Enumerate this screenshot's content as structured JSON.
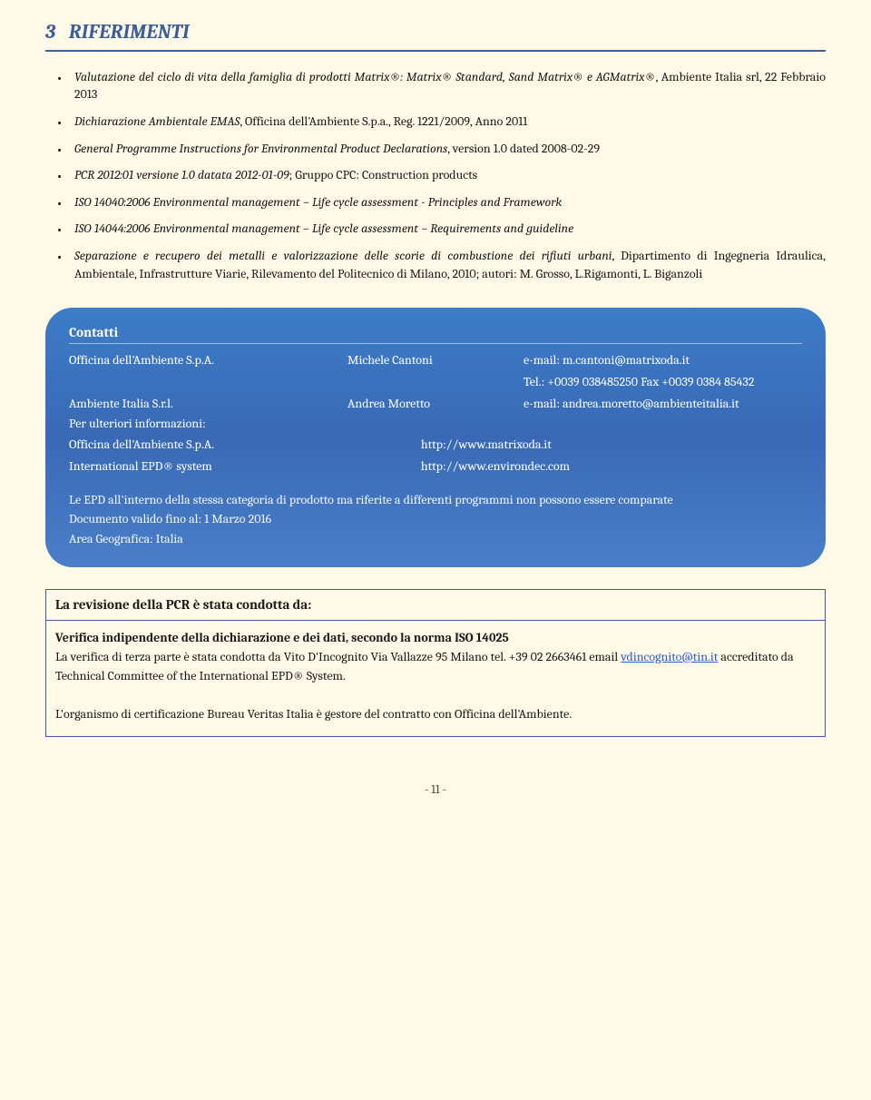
{
  "section": {
    "number": "3",
    "title": "RIFERIMENTI"
  },
  "references": [
    {
      "pre_italic": "Valutazione del ciclo di vita della famiglia di prodotti Matrix®: Matrix® Standard, Sand Matrix® e AGMatrix®",
      "post": ", Ambiente Italia srl, 22 Febbraio 2013"
    },
    {
      "pre_italic": "Dichiarazione Ambientale EMAS",
      "post": ", Officina dell'Ambiente S.p.a., Reg. 1221/2009, Anno 2011"
    },
    {
      "pre_italic": "General Programme Instructions for Environmental Product Declarations",
      "post": ", version 1.0 dated 2008-02-29"
    },
    {
      "pre_italic": "PCR 2012:01 versione 1.0 datata 2012-01-09",
      "post": "; Gruppo CPC: Construction products"
    },
    {
      "pre_italic": "ISO 14040:2006 Environmental management – Life cycle assessment - Principles and Framework",
      "post": ""
    },
    {
      "pre_italic": "ISO 14044:2006 Environmental management – Life cycle assessment – Requirements and guideline",
      "post": ""
    },
    {
      "pre_italic": "Separazione e recupero dei metalli e valorizzazione delle scorie di combustione dei rifiuti urbani",
      "post": ", Dipartimento di Ingegneria Idraulica, Ambientale, Infrastrutture Viarie, Rilevamento del Politecnico di Milano, 2010; autori: M. Grosso, L.Rigamonti, L. Biganzoli"
    }
  ],
  "contacts": {
    "heading": "Contatti",
    "rows": [
      {
        "org": "Officina dell'Ambiente S.p.A.",
        "person": "Michele Cantoni",
        "email_label": "e-mail: m.cantoni@matrixoda.it"
      },
      {
        "org": "",
        "person": "",
        "email_label": "Tel.: +0039 038485250 Fax +0039 0384 85432"
      },
      {
        "org": "Ambiente Italia S.r.l.",
        "person": "Andrea Moretto",
        "email_label": "e-mail: andrea.moretto@ambienteitalia.it"
      }
    ],
    "more_info_label": "Per ulteriori informazioni:",
    "links": [
      {
        "org": "Officina dell'Ambiente S.p.A.",
        "url": "http://www.matrixoda.it"
      },
      {
        "org": "International EPD® system",
        "url": "http://www.environdec.com"
      }
    ],
    "notice_lines": [
      "Le EPD all'interno della stessa categoria di prodotto ma riferite a differenti programmi non possono essere comparate",
      "Documento valido fino al: 1 Marzo 2016",
      "Area Geografica: Italia"
    ]
  },
  "pcr_box": {
    "heading": "La revisione della PCR è stata condotta da:",
    "sub_heading": "Verifica indipendente della dichiarazione e dei dati, secondo la norma ISO 14025",
    "body_pre": "La verifica di terza parte è stata condotta da Vito D'Incognito Via Vallazze 95 Milano tel. +39 02 2663461 email ",
    "email": "vdincognito@tin.it",
    "body_post": " accreditato da Technical Committee of the International EPD® System.",
    "body2": "L'organismo di certificazione Bureau Veritas Italia è gestore del contratto con Officina dell'Ambiente."
  },
  "page_number": "- 11 -",
  "colors": {
    "accent": "#3a5f9a",
    "bg": "#fff9e8",
    "box_grad_top": "#3d7cc7",
    "box_grad_bot": "#4a7fc8"
  }
}
